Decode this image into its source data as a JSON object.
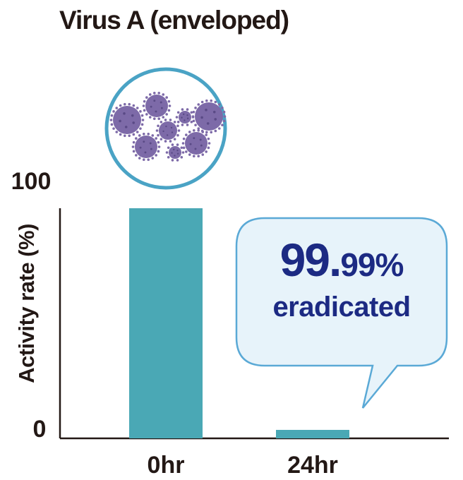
{
  "chart_data": {
    "type": "bar",
    "title": "Virus A (enveloped)",
    "ylabel": "Activity rate (%)",
    "xlabel": "",
    "categories": [
      "0hr",
      "24hr"
    ],
    "values": [
      100,
      0.01
    ],
    "ylim": [
      0,
      100
    ],
    "yticks": [
      "0",
      "100"
    ],
    "bar_color": "#4aa8b5",
    "grid": false,
    "annotation": {
      "value_main": "99.",
      "value_decimals": "99%",
      "label": "eradicated",
      "color": "#1c2a83"
    }
  },
  "colors": {
    "circle": "#4aa3c5",
    "virus": "#7d6aa8",
    "bubble_fill": "#e7f3fa",
    "bubble_stroke": "#5aa9d6"
  },
  "icons": {
    "virus_illustration": "virus-particles-icon"
  }
}
